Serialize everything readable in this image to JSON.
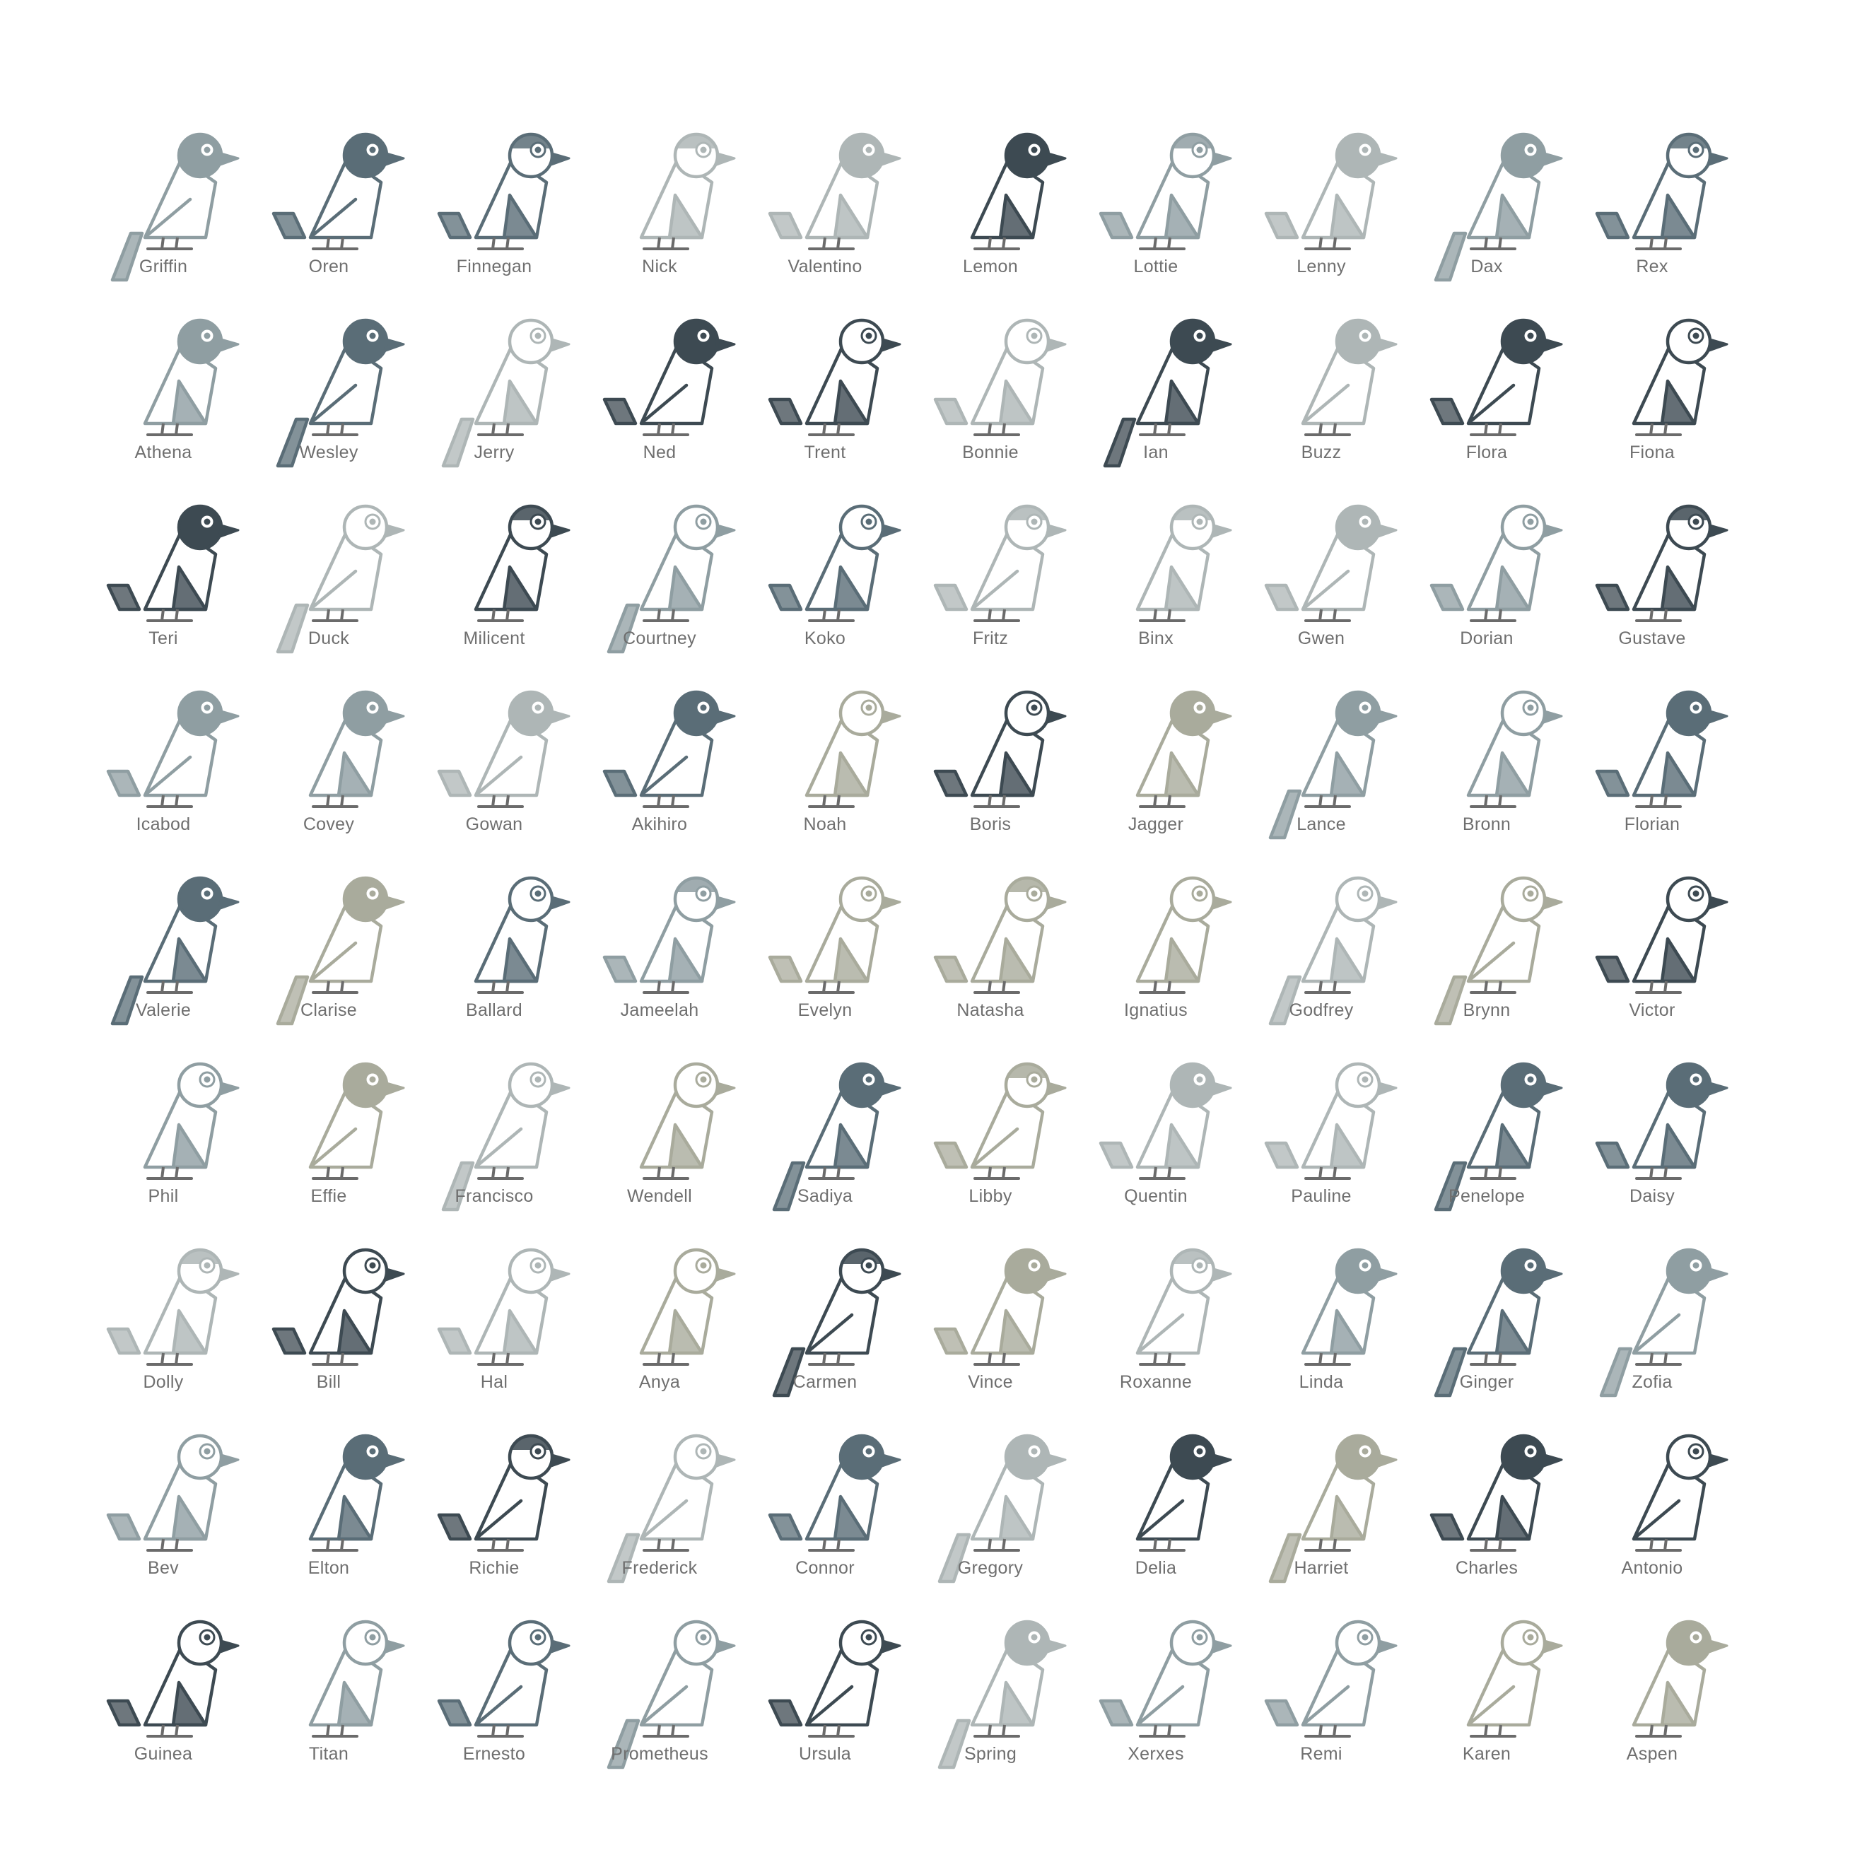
{
  "palette": {
    "charcoal": "#3d4a52",
    "slate": "#5a6d77",
    "steel": "#7c8f98",
    "gray": "#8f9ea2",
    "silver": "#aeb6b6",
    "sage": "#a9ab9c",
    "beige": "#c7c8b9",
    "label": "#6f6f6f",
    "feet": "#6b6b6b"
  },
  "birds": [
    {
      "name": "Griffin",
      "tone": "gray",
      "head": "tone",
      "wing": "none",
      "tail": "long"
    },
    {
      "name": "Oren",
      "tone": "slate",
      "head": "tone",
      "wing": "none",
      "tail": "short"
    },
    {
      "name": "Finnegan",
      "tone": "slate",
      "head": "split",
      "wing": "tone",
      "tail": "short"
    },
    {
      "name": "Nick",
      "tone": "silver",
      "head": "split",
      "wing": "tone",
      "tail": "none"
    },
    {
      "name": "Valentino",
      "tone": "silver",
      "head": "tone",
      "wing": "tone",
      "tail": "short"
    },
    {
      "name": "Lemon",
      "tone": "charcoal",
      "head": "tone",
      "wing": "tone",
      "tail": "none"
    },
    {
      "name": "Lottie",
      "tone": "gray",
      "head": "split",
      "wing": "tone",
      "tail": "short"
    },
    {
      "name": "Lenny",
      "tone": "silver",
      "head": "tone",
      "wing": "tone",
      "tail": "short"
    },
    {
      "name": "Dax",
      "tone": "gray",
      "head": "tone",
      "wing": "tone",
      "tail": "long"
    },
    {
      "name": "Rex",
      "tone": "slate",
      "head": "split",
      "wing": "tone",
      "tail": "short"
    },
    {
      "name": "Athena",
      "tone": "gray",
      "head": "tone",
      "wing": "tone",
      "tail": "none"
    },
    {
      "name": "Wesley",
      "tone": "slate",
      "head": "tone",
      "wing": "none",
      "tail": "long"
    },
    {
      "name": "Jerry",
      "tone": "silver",
      "head": "white",
      "wing": "tone",
      "tail": "long"
    },
    {
      "name": "Ned",
      "tone": "charcoal",
      "head": "tone",
      "wing": "none",
      "tail": "short"
    },
    {
      "name": "Trent",
      "tone": "charcoal",
      "head": "white",
      "wing": "tone",
      "tail": "short"
    },
    {
      "name": "Bonnie",
      "tone": "silver",
      "head": "white",
      "wing": "tone",
      "tail": "short"
    },
    {
      "name": "Ian",
      "tone": "charcoal",
      "head": "tone",
      "wing": "tone",
      "tail": "long"
    },
    {
      "name": "Buzz",
      "tone": "silver",
      "head": "tone",
      "wing": "none",
      "tail": "none"
    },
    {
      "name": "Flora",
      "tone": "charcoal",
      "head": "tone",
      "wing": "none",
      "tail": "short"
    },
    {
      "name": "Fiona",
      "tone": "charcoal",
      "head": "white",
      "wing": "tone",
      "tail": "none"
    },
    {
      "name": "Teri",
      "tone": "charcoal",
      "head": "tone",
      "wing": "tone",
      "tail": "short"
    },
    {
      "name": "Duck",
      "tone": "silver",
      "head": "white",
      "wing": "none",
      "tail": "long"
    },
    {
      "name": "Milicent",
      "tone": "charcoal",
      "head": "split",
      "wing": "tone",
      "tail": "none"
    },
    {
      "name": "Courtney",
      "tone": "gray",
      "head": "white",
      "wing": "tone",
      "tail": "long"
    },
    {
      "name": "Koko",
      "tone": "slate",
      "head": "white",
      "wing": "tone",
      "tail": "short"
    },
    {
      "name": "Fritz",
      "tone": "silver",
      "head": "split",
      "wing": "none",
      "tail": "short"
    },
    {
      "name": "Binx",
      "tone": "silver",
      "head": "split",
      "wing": "tone",
      "tail": "none"
    },
    {
      "name": "Gwen",
      "tone": "silver",
      "head": "tone",
      "wing": "none",
      "tail": "short"
    },
    {
      "name": "Dorian",
      "tone": "gray",
      "head": "white",
      "wing": "tone",
      "tail": "short"
    },
    {
      "name": "Gustave",
      "tone": "charcoal",
      "head": "split",
      "wing": "tone",
      "tail": "short"
    },
    {
      "name": "Icabod",
      "tone": "gray",
      "head": "tone",
      "wing": "none",
      "tail": "short"
    },
    {
      "name": "Covey",
      "tone": "gray",
      "head": "tone",
      "wing": "tone",
      "tail": "none"
    },
    {
      "name": "Gowan",
      "tone": "silver",
      "head": "tone",
      "wing": "none",
      "tail": "short"
    },
    {
      "name": "Akihiro",
      "tone": "slate",
      "head": "tone",
      "wing": "none",
      "tail": "short"
    },
    {
      "name": "Noah",
      "tone": "sage",
      "head": "white",
      "wing": "tone",
      "tail": "none"
    },
    {
      "name": "Boris",
      "tone": "charcoal",
      "head": "white",
      "wing": "tone",
      "tail": "short"
    },
    {
      "name": "Jagger",
      "tone": "sage",
      "head": "tone",
      "wing": "tone",
      "tail": "none"
    },
    {
      "name": "Lance",
      "tone": "gray",
      "head": "tone",
      "wing": "tone",
      "tail": "long"
    },
    {
      "name": "Bronn",
      "tone": "gray",
      "head": "white",
      "wing": "tone",
      "tail": "none"
    },
    {
      "name": "Florian",
      "tone": "slate",
      "head": "tone",
      "wing": "tone",
      "tail": "short"
    },
    {
      "name": "Valerie",
      "tone": "slate",
      "head": "tone",
      "wing": "tone",
      "tail": "long"
    },
    {
      "name": "Clarise",
      "tone": "sage",
      "head": "tone",
      "wing": "none",
      "tail": "long"
    },
    {
      "name": "Ballard",
      "tone": "slate",
      "head": "white",
      "wing": "tone",
      "tail": "none"
    },
    {
      "name": "Jameelah",
      "tone": "gray",
      "head": "split",
      "wing": "tone",
      "tail": "short"
    },
    {
      "name": "Evelyn",
      "tone": "sage",
      "head": "white",
      "wing": "tone",
      "tail": "short"
    },
    {
      "name": "Natasha",
      "tone": "sage",
      "head": "split",
      "wing": "tone",
      "tail": "short"
    },
    {
      "name": "Ignatius",
      "tone": "sage",
      "head": "white",
      "wing": "tone",
      "tail": "none"
    },
    {
      "name": "Godfrey",
      "tone": "silver",
      "head": "white",
      "wing": "tone",
      "tail": "long"
    },
    {
      "name": "Brynn",
      "tone": "sage",
      "head": "white",
      "wing": "none",
      "tail": "long"
    },
    {
      "name": "Victor",
      "tone": "charcoal",
      "head": "white",
      "wing": "tone",
      "tail": "short"
    },
    {
      "name": "Phil",
      "tone": "gray",
      "head": "white",
      "wing": "tone",
      "tail": "none"
    },
    {
      "name": "Effie",
      "tone": "sage",
      "head": "tone",
      "wing": "none",
      "tail": "none"
    },
    {
      "name": "Francisco",
      "tone": "silver",
      "head": "white",
      "wing": "none",
      "tail": "long"
    },
    {
      "name": "Wendell",
      "tone": "sage",
      "head": "white",
      "wing": "tone",
      "tail": "none"
    },
    {
      "name": "Sadiya",
      "tone": "slate",
      "head": "tone",
      "wing": "tone",
      "tail": "long"
    },
    {
      "name": "Libby",
      "tone": "sage",
      "head": "split",
      "wing": "none",
      "tail": "short"
    },
    {
      "name": "Quentin",
      "tone": "silver",
      "head": "tone",
      "wing": "tone",
      "tail": "short"
    },
    {
      "name": "Pauline",
      "tone": "silver",
      "head": "white",
      "wing": "tone",
      "tail": "short"
    },
    {
      "name": "Penelope",
      "tone": "slate",
      "head": "tone",
      "wing": "tone",
      "tail": "long"
    },
    {
      "name": "Daisy",
      "tone": "slate",
      "head": "tone",
      "wing": "tone",
      "tail": "short"
    },
    {
      "name": "Dolly",
      "tone": "silver",
      "head": "split",
      "wing": "tone",
      "tail": "short"
    },
    {
      "name": "Bill",
      "tone": "charcoal",
      "head": "white",
      "wing": "tone",
      "tail": "short"
    },
    {
      "name": "Hal",
      "tone": "silver",
      "head": "white",
      "wing": "tone",
      "tail": "short"
    },
    {
      "name": "Anya",
      "tone": "sage",
      "head": "white",
      "wing": "tone",
      "tail": "none"
    },
    {
      "name": "Carmen",
      "tone": "charcoal",
      "head": "split",
      "wing": "none",
      "tail": "long"
    },
    {
      "name": "Vince",
      "tone": "sage",
      "head": "tone",
      "wing": "tone",
      "tail": "short"
    },
    {
      "name": "Roxanne",
      "tone": "silver",
      "head": "split",
      "wing": "none",
      "tail": "none"
    },
    {
      "name": "Linda",
      "tone": "gray",
      "head": "tone",
      "wing": "tone",
      "tail": "none"
    },
    {
      "name": "Ginger",
      "tone": "slate",
      "head": "tone",
      "wing": "tone",
      "tail": "long"
    },
    {
      "name": "Zofia",
      "tone": "gray",
      "head": "tone",
      "wing": "none",
      "tail": "long"
    },
    {
      "name": "Bev",
      "tone": "gray",
      "head": "white",
      "wing": "tone",
      "tail": "short"
    },
    {
      "name": "Elton",
      "tone": "slate",
      "head": "tone",
      "wing": "tone",
      "tail": "none"
    },
    {
      "name": "Richie",
      "tone": "charcoal",
      "head": "split",
      "wing": "none",
      "tail": "short"
    },
    {
      "name": "Frederick",
      "tone": "silver",
      "head": "white",
      "wing": "none",
      "tail": "long"
    },
    {
      "name": "Connor",
      "tone": "slate",
      "head": "tone",
      "wing": "tone",
      "tail": "short"
    },
    {
      "name": "Gregory",
      "tone": "silver",
      "head": "tone",
      "wing": "tone",
      "tail": "long"
    },
    {
      "name": "Delia",
      "tone": "charcoal",
      "head": "tone",
      "wing": "none",
      "tail": "none"
    },
    {
      "name": "Harriet",
      "tone": "sage",
      "head": "tone",
      "wing": "tone",
      "tail": "long"
    },
    {
      "name": "Charles",
      "tone": "charcoal",
      "head": "tone",
      "wing": "tone",
      "tail": "short"
    },
    {
      "name": "Antonio",
      "tone": "charcoal",
      "head": "white",
      "wing": "none",
      "tail": "none"
    },
    {
      "name": "Guinea",
      "tone": "charcoal",
      "head": "white",
      "wing": "tone",
      "tail": "short"
    },
    {
      "name": "Titan",
      "tone": "gray",
      "head": "white",
      "wing": "tone",
      "tail": "none"
    },
    {
      "name": "Ernesto",
      "tone": "slate",
      "head": "white",
      "wing": "none",
      "tail": "short"
    },
    {
      "name": "Prometheus",
      "tone": "gray",
      "head": "white",
      "wing": "none",
      "tail": "long"
    },
    {
      "name": "Ursula",
      "tone": "charcoal",
      "head": "white",
      "wing": "none",
      "tail": "short"
    },
    {
      "name": "Spring",
      "tone": "silver",
      "head": "tone",
      "wing": "tone",
      "tail": "long"
    },
    {
      "name": "Xerxes",
      "tone": "gray",
      "head": "white",
      "wing": "none",
      "tail": "short"
    },
    {
      "name": "Remi",
      "tone": "gray",
      "head": "white",
      "wing": "none",
      "tail": "short"
    },
    {
      "name": "Karen",
      "tone": "sage",
      "head": "white",
      "wing": "none",
      "tail": "none"
    },
    {
      "name": "Aspen",
      "tone": "sage",
      "head": "tone",
      "wing": "tone",
      "tail": "none"
    }
  ]
}
